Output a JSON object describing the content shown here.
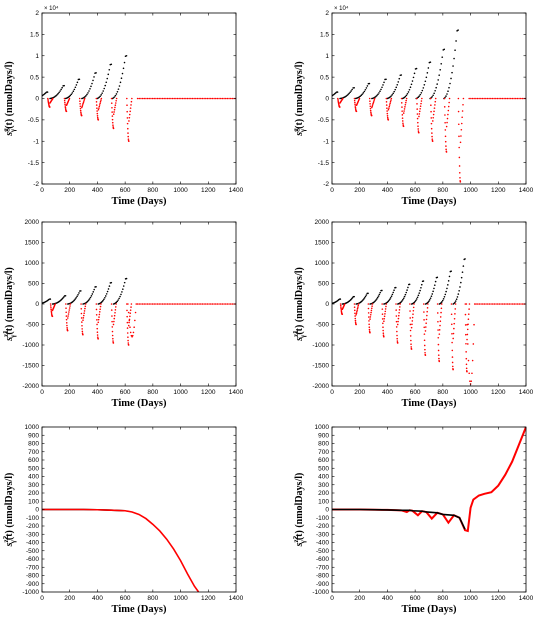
{
  "chart_data": [
    {
      "type": "scatter",
      "xlabel": "Time (Days)",
      "ylabel": "s_γ^g(t) (nmolDays/l)",
      "ylabel_parts": {
        "base": "s",
        "sup": "g",
        "sub": "γ",
        "rest": "(t) (nmolDays/l)"
      },
      "xlim": [
        0,
        1400
      ],
      "ylim": [
        -2,
        2
      ],
      "xticks": [
        0,
        200,
        400,
        600,
        800,
        1000,
        1200,
        1400
      ],
      "yticks": [
        -2,
        -1.5,
        -1,
        -0.5,
        0,
        0.5,
        1,
        1.5,
        2
      ],
      "ytick_labels": [
        "-2",
        "-1.5",
        "-1",
        "-0.5",
        "0",
        "0.5",
        "1",
        "1.5",
        "2"
      ],
      "y_multiplier_label": "× 10⁴",
      "grid": false,
      "series": [
        {
          "color": "#000000",
          "kind": "positive",
          "values": [
            [
              20,
              0.15
            ],
            [
              80,
              0.07
            ],
            [
              120,
              0.22
            ],
            [
              200,
              0.12
            ],
            [
              240,
              0.38
            ],
            [
              300,
              0.18
            ],
            [
              360,
              0.5
            ],
            [
              420,
              0.25
            ],
            [
              470,
              0.75
            ],
            [
              530,
              0.35
            ],
            [
              600,
              1.05
            ],
            [
              640,
              0.0
            ],
            [
              700,
              0.0
            ],
            [
              800,
              0.0
            ],
            [
              1000,
              0.0
            ],
            [
              1200,
              0.0
            ],
            [
              1400,
              0.0
            ]
          ]
        },
        {
          "color": "#ff0000",
          "kind": "negative",
          "values": [
            [
              60,
              -0.1
            ],
            [
              130,
              -0.05
            ],
            [
              160,
              -0.2
            ],
            [
              230,
              -0.1
            ],
            [
              270,
              -0.35
            ],
            [
              330,
              -0.15
            ],
            [
              380,
              -0.45
            ],
            [
              440,
              -0.2
            ],
            [
              480,
              -0.7
            ],
            [
              540,
              -0.3
            ],
            [
              620,
              -1.0
            ],
            [
              660,
              -0.15
            ],
            [
              700,
              0.0
            ],
            [
              800,
              0.0
            ],
            [
              1000,
              0.0
            ],
            [
              1200,
              0.0
            ],
            [
              1400,
              0.0
            ]
          ]
        }
      ],
      "cycles": {
        "starts": [
          0,
          120,
          240,
          360,
          480
        ],
        "end": 580,
        "peak_times": [
          40,
          160,
          270,
          390,
          500,
          610
        ],
        "pos_peaks": [
          0.15,
          0.3,
          0.45,
          0.6,
          0.8,
          1.0
        ],
        "neg_peaks": [
          -0.2,
          -0.3,
          -0.4,
          -0.5,
          -0.7,
          -1.0
        ]
      }
    },
    {
      "type": "scatter",
      "xlabel": "Time (Days)",
      "ylabel": "s_γ^g(t) (nmolDays/l)",
      "ylabel_parts": {
        "base": "s",
        "sup": "g",
        "sub": "γ",
        "rest": "(t) (nmolDays/l)"
      },
      "xlim": [
        0,
        1400
      ],
      "ylim": [
        -2,
        2
      ],
      "xticks": [
        0,
        200,
        400,
        600,
        800,
        1000,
        1200,
        1400
      ],
      "yticks": [
        -2,
        -1.5,
        -1,
        -0.5,
        0,
        0.5,
        1,
        1.5,
        2
      ],
      "ytick_labels": [
        "-2",
        "-1.5",
        "-1",
        "-0.5",
        "0",
        "0.5",
        "1",
        "1.5",
        "2"
      ],
      "y_multiplier_label": "× 10⁴",
      "grid": false,
      "cycles": {
        "peak_times": [
          40,
          160,
          270,
          390,
          500,
          610,
          710,
          810,
          910
        ],
        "pos_peaks": [
          0.15,
          0.25,
          0.35,
          0.45,
          0.55,
          0.7,
          0.85,
          1.15,
          1.6
        ],
        "neg_peaks": [
          -0.2,
          -0.3,
          -0.4,
          -0.5,
          -0.65,
          -0.8,
          -1.0,
          -1.25,
          -1.95
        ]
      }
    },
    {
      "type": "scatter",
      "xlabel": "Time (Days)",
      "ylabel": "s_γ^{z1}(t) (nmolDays/l)",
      "ylabel_parts": {
        "base": "s",
        "sup": "z1",
        "sub": "γ",
        "rest": "(t) (nmolDays/l)"
      },
      "xlim": [
        0,
        1400
      ],
      "ylim": [
        -2000,
        2000
      ],
      "xticks": [
        0,
        200,
        400,
        600,
        800,
        1000,
        1200,
        1400
      ],
      "yticks": [
        -2000,
        -1500,
        -1000,
        -500,
        0,
        500,
        1000,
        1500,
        2000
      ],
      "ytick_labels": [
        "-2000",
        "-1500",
        "-1000",
        "-500",
        "0",
        "500",
        "1000",
        "1500",
        "2000"
      ],
      "grid": false,
      "cycles": {
        "peak_times": [
          60,
          170,
          280,
          390,
          500,
          610
        ],
        "pos_peaks": [
          120,
          200,
          320,
          420,
          520,
          620
        ],
        "neg_peaks": [
          -300,
          -650,
          -750,
          -850,
          -950,
          -1000
        ],
        "recovery": {
          "t": 680,
          "v": -800
        }
      }
    },
    {
      "type": "scatter",
      "xlabel": "Time (Days)",
      "ylabel": "s_γ^{z1}(t) (nmolDays/l)",
      "ylabel_parts": {
        "base": "s",
        "sup": "z1",
        "sub": "γ",
        "rest": "(t) (nmolDays/l)"
      },
      "xlim": [
        0,
        1400
      ],
      "ylim": [
        -2000,
        2000
      ],
      "xticks": [
        0,
        200,
        400,
        600,
        800,
        1000,
        1200,
        1400
      ],
      "yticks": [
        -2000,
        -1500,
        -1000,
        -500,
        0,
        500,
        1000,
        1500,
        2000
      ],
      "ytick_labels": [
        "-2000",
        "-1500",
        "-1000",
        "-500",
        "0",
        "500",
        "1000",
        "1500",
        "2000"
      ],
      "grid": false,
      "cycles": {
        "peak_times": [
          60,
          160,
          260,
          360,
          460,
          560,
          660,
          760,
          860,
          960
        ],
        "pos_peaks": [
          120,
          180,
          260,
          330,
          400,
          480,
          560,
          650,
          800,
          1100
        ],
        "neg_peaks": [
          -250,
          -500,
          -700,
          -800,
          -950,
          -1100,
          -1250,
          -1400,
          -1600,
          -1650
        ],
        "recovery": {
          "t": 1040,
          "v": -1950
        }
      }
    },
    {
      "type": "line",
      "xlabel": "Time (Days)",
      "ylabel": "s_γ^{z2}(t) (nmolDays/l)",
      "ylabel_parts": {
        "base": "s",
        "sup": "z2",
        "sub": "γ",
        "rest": "(t) (nmolDays/l)"
      },
      "xlim": [
        0,
        1400
      ],
      "ylim": [
        -1000,
        1000
      ],
      "xticks": [
        0,
        200,
        400,
        600,
        800,
        1000,
        1200,
        1400
      ],
      "yticks": [
        -1000,
        -900,
        -800,
        -700,
        -600,
        -500,
        -400,
        -300,
        -200,
        -100,
        0,
        100,
        200,
        300,
        400,
        500,
        600,
        700,
        800,
        900,
        1000
      ],
      "ytick_labels": [
        "-1000",
        "-900",
        "-800",
        "-700",
        "-600",
        "-500",
        "-400",
        "-300",
        "-200",
        "-100",
        "0",
        "100",
        "200",
        "300",
        "400",
        "500",
        "600",
        "700",
        "800",
        "900",
        "1000"
      ],
      "grid": false,
      "series": [
        {
          "color": "#000000",
          "x": [
            0,
            100,
            200,
            300,
            400,
            500,
            600
          ],
          "y": [
            0,
            0,
            0,
            0,
            -3,
            -8,
            -15
          ]
        },
        {
          "color": "#ff0000",
          "x": [
            0,
            100,
            200,
            300,
            400,
            500,
            600,
            650,
            700,
            750,
            800,
            850,
            900,
            950,
            1000,
            1050,
            1100,
            1130
          ],
          "y": [
            0,
            0,
            0,
            0,
            -3,
            -8,
            -15,
            -30,
            -60,
            -110,
            -180,
            -260,
            -360,
            -480,
            -620,
            -780,
            -930,
            -1000
          ]
        }
      ]
    },
    {
      "type": "line",
      "xlabel": "Time (Days)",
      "ylabel": "s_γ^{z2}(t) (nmolDays/l)",
      "ylabel_parts": {
        "base": "s",
        "sup": "z2",
        "sub": "γ",
        "rest": "(t) (nmolDays/l)"
      },
      "xlim": [
        0,
        1400
      ],
      "ylim": [
        -1000,
        1000
      ],
      "xticks": [
        0,
        200,
        400,
        600,
        800,
        1000,
        1200,
        1400
      ],
      "yticks": [
        -1000,
        -900,
        -800,
        -700,
        -600,
        -500,
        -400,
        -300,
        -200,
        -100,
        0,
        100,
        200,
        300,
        400,
        500,
        600,
        700,
        800,
        900,
        1000
      ],
      "ytick_labels": [
        "-1000",
        "-900",
        "-800",
        "-700",
        "-600",
        "-500",
        "-400",
        "-300",
        "-200",
        "-100",
        "0",
        "100",
        "200",
        "300",
        "400",
        "500",
        "600",
        "700",
        "800",
        "900",
        "1000"
      ],
      "grid": false,
      "series": [
        {
          "color": "#ff0000",
          "x": [
            0,
            200,
            400,
            500,
            540,
            560,
            580,
            620,
            650,
            680,
            720,
            760,
            800,
            840,
            880,
            920,
            960,
            980,
            1000,
            1020,
            1060,
            1100,
            1150,
            1200,
            1250,
            1300,
            1350,
            1400
          ],
          "y": [
            0,
            0,
            -5,
            -10,
            -30,
            -10,
            -15,
            -70,
            -20,
            -30,
            -110,
            -40,
            -60,
            -160,
            -70,
            -100,
            -250,
            -260,
            20,
            120,
            170,
            190,
            210,
            290,
            420,
            580,
            790,
            1000
          ]
        },
        {
          "color": "#000000",
          "x": [
            0,
            200,
            400,
            500,
            560,
            580,
            650,
            680,
            760,
            800,
            880,
            920,
            960
          ],
          "y": [
            0,
            0,
            -5,
            -10,
            -10,
            -15,
            -20,
            -30,
            -40,
            -60,
            -70,
            -100,
            -240
          ]
        }
      ]
    }
  ]
}
